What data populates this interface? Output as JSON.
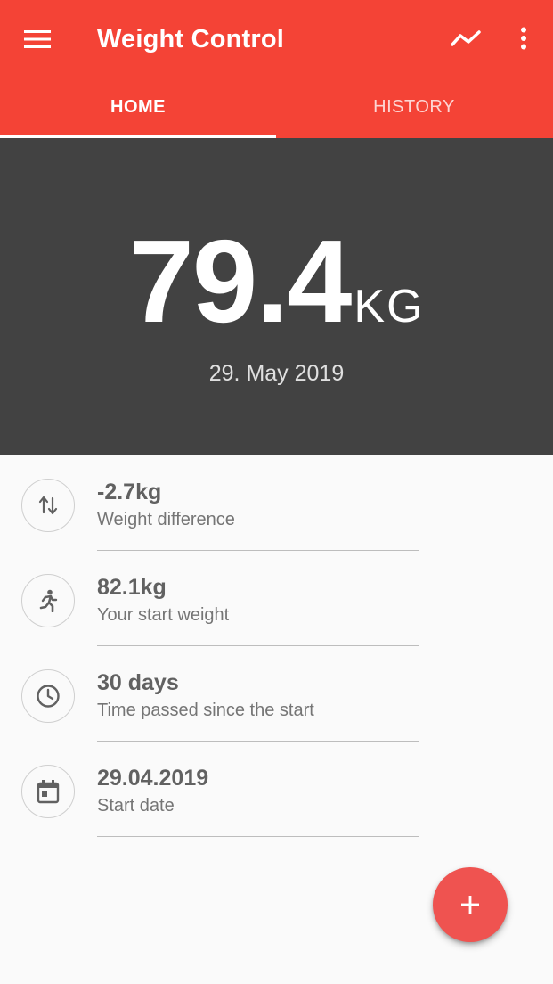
{
  "app": {
    "title": "Weight Control",
    "accent_color": "#f44336",
    "hero_background": "#424242"
  },
  "toolbar": {
    "menu_icon": "hamburger-menu-icon",
    "chart_icon": "trend-line-icon",
    "more_icon": "more-vertical-icon"
  },
  "tabs": [
    {
      "label": "HOME",
      "selected": true
    },
    {
      "label": "HISTORY",
      "selected": false
    }
  ],
  "hero": {
    "weight": "79.4",
    "unit": "KG",
    "date": "29. May 2019"
  },
  "stats": [
    {
      "icon": "swap-vertical-icon",
      "value": "-2.7kg",
      "label": "Weight difference"
    },
    {
      "icon": "running-person-icon",
      "value": "82.1kg",
      "label": "Your start weight"
    },
    {
      "icon": "clock-icon",
      "value": "30 days",
      "label": "Time passed since the start"
    },
    {
      "icon": "calendar-icon",
      "value": "29.04.2019",
      "label": "Start date"
    }
  ],
  "fab": {
    "icon": "plus-icon"
  }
}
